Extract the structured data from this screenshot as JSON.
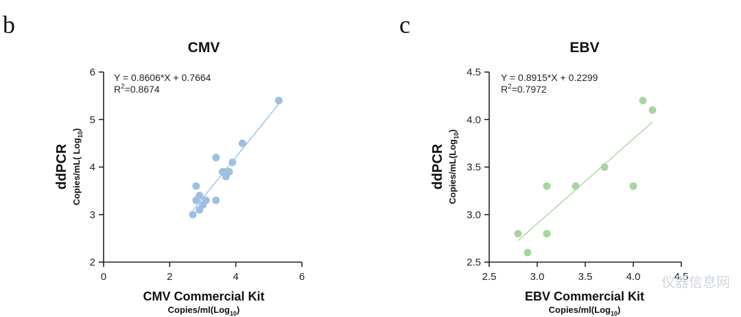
{
  "panels": [
    {
      "letter": "b"
    },
    {
      "letter": "c"
    }
  ],
  "watermark": "仪器信息网",
  "chart_data": [
    {
      "type": "scatter",
      "title": "CMV",
      "ylabel": "ddPCR",
      "ylabel_sub_prefix": "Copies/mL( Log",
      "ylabel_sub_index": "10",
      "ylabel_sub_suffix": ")",
      "xlabel": "CMV Commercial Kit",
      "xlabel_sub_prefix": "Copies/ml(Log",
      "xlabel_sub_index": "10",
      "xlabel_sub_suffix": ")",
      "xlim": [
        0,
        6
      ],
      "ylim": [
        2,
        6
      ],
      "xticks": [
        "0",
        "2",
        "4",
        "6"
      ],
      "yticks": [
        "2",
        "3",
        "4",
        "5",
        "6"
      ],
      "equation": "Y = 0.8606*X + 0.7664",
      "r2_prefix": "R",
      "r2_exp": "2",
      "r2_value": "=0.8674",
      "slope": 0.8606,
      "intercept": 0.7664,
      "fit_x": [
        2.7,
        5.3
      ],
      "color": "#9dbfe2",
      "points": [
        {
          "x": 2.7,
          "y": 3.0
        },
        {
          "x": 2.8,
          "y": 3.6
        },
        {
          "x": 2.8,
          "y": 3.3
        },
        {
          "x": 2.9,
          "y": 3.4
        },
        {
          "x": 2.9,
          "y": 3.1
        },
        {
          "x": 3.0,
          "y": 3.2
        },
        {
          "x": 3.1,
          "y": 3.3
        },
        {
          "x": 3.4,
          "y": 3.3
        },
        {
          "x": 3.4,
          "y": 4.2
        },
        {
          "x": 3.6,
          "y": 3.9
        },
        {
          "x": 3.7,
          "y": 3.8
        },
        {
          "x": 3.7,
          "y": 3.9
        },
        {
          "x": 3.8,
          "y": 3.9
        },
        {
          "x": 3.9,
          "y": 4.1
        },
        {
          "x": 4.2,
          "y": 4.5
        },
        {
          "x": 5.3,
          "y": 5.4
        }
      ]
    },
    {
      "type": "scatter",
      "title": "EBV",
      "ylabel": "ddPCR",
      "ylabel_sub_prefix": "Copies/mL(Log",
      "ylabel_sub_index": "10",
      "ylabel_sub_suffix": ")",
      "xlabel": "EBV Commercial Kit",
      "xlabel_sub_prefix": "Copies/ml(Log",
      "xlabel_sub_index": "10",
      "xlabel_sub_suffix": ")",
      "xlim": [
        2.5,
        4.5
      ],
      "ylim": [
        2.5,
        4.5
      ],
      "xticks": [
        "2.5",
        "3.0",
        "3.5",
        "4.0",
        "4.5"
      ],
      "yticks": [
        "2.5",
        "3.0",
        "3.5",
        "4.0",
        "4.5"
      ],
      "equation": "Y = 0.8915*X + 0.2299",
      "r2_prefix": "R",
      "r2_exp": "2",
      "r2_value": "=0.7972",
      "slope": 0.8915,
      "intercept": 0.2299,
      "fit_x": [
        2.8,
        4.2
      ],
      "color": "#a9d4a2",
      "points": [
        {
          "x": 2.8,
          "y": 2.8
        },
        {
          "x": 2.9,
          "y": 2.6
        },
        {
          "x": 3.1,
          "y": 3.3
        },
        {
          "x": 3.1,
          "y": 2.8
        },
        {
          "x": 3.4,
          "y": 3.3
        },
        {
          "x": 3.7,
          "y": 3.5
        },
        {
          "x": 4.0,
          "y": 3.3
        },
        {
          "x": 4.1,
          "y": 4.2
        },
        {
          "x": 4.2,
          "y": 4.1
        }
      ]
    }
  ]
}
